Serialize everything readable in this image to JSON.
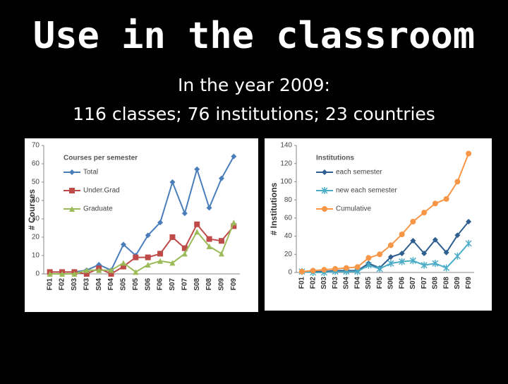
{
  "slide": {
    "title": "Use in the classroom",
    "subtitle": [
      "In the year 2009:",
      "116 classes; 76 institutions; 23 countries"
    ]
  },
  "chart_data": [
    {
      "type": "line",
      "ylabel": "# Courses",
      "legend_title": "Courses per semester",
      "legend": "upper left",
      "categories": [
        "F01",
        "F02",
        "S03",
        "F03",
        "S04",
        "F04",
        "S05",
        "F05",
        "S06",
        "F06",
        "S07",
        "F07",
        "S08",
        "F08",
        "S09",
        "F09"
      ],
      "ylim": [
        0,
        70
      ],
      "yticks": [
        0,
        10,
        20,
        30,
        40,
        50,
        60,
        70
      ],
      "series": [
        {
          "name": "Total",
          "color": "#4a7ebb",
          "marker": "diamond",
          "values": [
            1,
            1,
            1,
            2,
            5,
            2,
            16,
            10,
            21,
            28,
            50,
            33,
            57,
            36,
            52,
            64
          ]
        },
        {
          "name": "Under.Grad",
          "color": "#be4b48",
          "marker": "square",
          "values": [
            1,
            1,
            1,
            0,
            3,
            0,
            4,
            9,
            9,
            11,
            20,
            14,
            27,
            19,
            18,
            26
          ]
        },
        {
          "name": "Graduate",
          "color": "#9bbb59",
          "marker": "triangle",
          "values": [
            0,
            0,
            0,
            2,
            2,
            2,
            6,
            1,
            5,
            7,
            6,
            11,
            23,
            15,
            11,
            28
          ]
        }
      ]
    },
    {
      "type": "line",
      "ylabel": "# Institutions",
      "legend_title": "Institutions",
      "legend": "upper left",
      "categories": [
        "F01",
        "F02",
        "S03",
        "F03",
        "S04",
        "F04",
        "S05",
        "F05",
        "S06",
        "F06",
        "S07",
        "F07",
        "S08",
        "F08",
        "S09",
        "F09"
      ],
      "ylim": [
        0,
        140
      ],
      "yticks": [
        0,
        20,
        40,
        60,
        80,
        100,
        120,
        140
      ],
      "series": [
        {
          "name": "each semester",
          "color": "#2e5f8f",
          "marker": "diamond",
          "values": [
            1,
            1,
            1,
            2,
            2,
            2,
            10,
            5,
            17,
            21,
            35,
            21,
            36,
            22,
            41,
            56
          ]
        },
        {
          "name": "new each semester",
          "color": "#4bacc6",
          "marker": "star",
          "values": [
            1,
            0,
            0,
            1,
            1,
            1,
            8,
            4,
            10,
            12,
            13,
            8,
            10,
            5,
            18,
            32
          ]
        },
        {
          "name": "Cumulative",
          "color": "#f79646",
          "marker": "circle",
          "values": [
            1,
            2,
            3,
            4,
            5,
            6,
            16,
            20,
            30,
            42,
            56,
            66,
            76,
            81,
            100,
            131
          ]
        }
      ]
    }
  ]
}
